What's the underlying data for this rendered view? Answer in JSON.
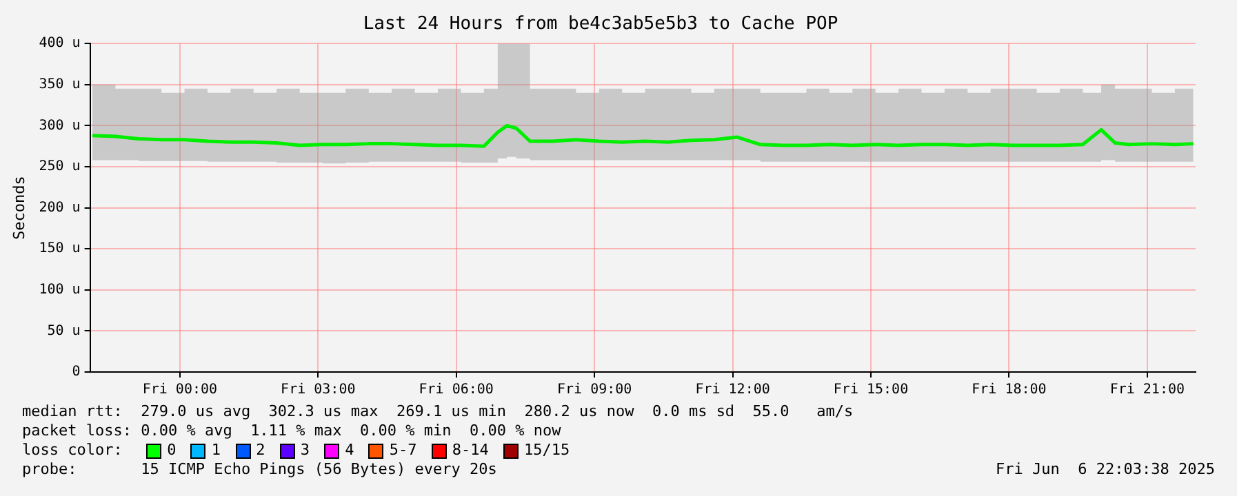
{
  "chart_data": {
    "type": "line",
    "title": "Last 24 Hours from be4c3ab5e5b3 to Cache POP",
    "ylabel": "Seconds",
    "x": [
      "2025-06-05T22:06",
      "2025-06-05T22:36",
      "2025-06-05T23:06",
      "2025-06-05T23:36",
      "2025-06-06T00:06",
      "2025-06-06T00:36",
      "2025-06-06T01:06",
      "2025-06-06T01:36",
      "2025-06-06T02:06",
      "2025-06-06T02:36",
      "2025-06-06T03:06",
      "2025-06-06T03:36",
      "2025-06-06T04:06",
      "2025-06-06T04:36",
      "2025-06-06T05:06",
      "2025-06-06T05:36",
      "2025-06-06T06:06",
      "2025-06-06T06:36",
      "2025-06-06T06:54",
      "2025-06-06T07:06",
      "2025-06-06T07:18",
      "2025-06-06T07:36",
      "2025-06-06T08:06",
      "2025-06-06T08:36",
      "2025-06-06T09:06",
      "2025-06-06T09:36",
      "2025-06-06T10:06",
      "2025-06-06T10:36",
      "2025-06-06T11:06",
      "2025-06-06T11:36",
      "2025-06-06T12:06",
      "2025-06-06T12:36",
      "2025-06-06T13:06",
      "2025-06-06T13:36",
      "2025-06-06T14:06",
      "2025-06-06T14:36",
      "2025-06-06T15:06",
      "2025-06-06T15:36",
      "2025-06-06T16:06",
      "2025-06-06T16:36",
      "2025-06-06T17:06",
      "2025-06-06T17:36",
      "2025-06-06T18:06",
      "2025-06-06T18:36",
      "2025-06-06T19:06",
      "2025-06-06T19:36",
      "2025-06-06T20:00",
      "2025-06-06T20:18",
      "2025-06-06T20:36",
      "2025-06-06T21:06",
      "2025-06-06T21:36",
      "2025-06-06T22:00"
    ],
    "series": [
      {
        "color": "#00ee00",
        "values": [
          288,
          287,
          284,
          283,
          283,
          281,
          280,
          280,
          279,
          276,
          277,
          277,
          278,
          278,
          277,
          276,
          276,
          275,
          292,
          300,
          297,
          281,
          281,
          283,
          281,
          280,
          281,
          280,
          282,
          283,
          286,
          277,
          276,
          276,
          277,
          276,
          277,
          276,
          277,
          277,
          276,
          277,
          276,
          276,
          276,
          277,
          295,
          279,
          277,
          278,
          277,
          278
        ],
        "lower": [
          258,
          258,
          257,
          257,
          257,
          256,
          256,
          256,
          255,
          255,
          254,
          255,
          256,
          256,
          256,
          256,
          255,
          255,
          260,
          262,
          260,
          258,
          258,
          258,
          258,
          258,
          258,
          258,
          258,
          258,
          258,
          256,
          256,
          256,
          256,
          256,
          256,
          256,
          256,
          256,
          256,
          256,
          256,
          256,
          256,
          256,
          258,
          256,
          256,
          256,
          256,
          256
        ],
        "upper": [
          350,
          345,
          345,
          340,
          345,
          340,
          345,
          340,
          345,
          340,
          340,
          345,
          340,
          345,
          340,
          345,
          340,
          345,
          400,
          400,
          400,
          345,
          345,
          340,
          345,
          340,
          345,
          345,
          340,
          345,
          345,
          340,
          340,
          345,
          340,
          345,
          340,
          345,
          340,
          345,
          340,
          345,
          345,
          340,
          345,
          340,
          350,
          345,
          345,
          340,
          345,
          345
        ]
      }
    ],
    "xlim": [
      "2025-06-05T22:03",
      "2025-06-06T22:03"
    ],
    "ylim": [
      0,
      400
    ],
    "xticks": [
      {
        "value": "2025-06-06T00:00",
        "label": "Fri 00:00"
      },
      {
        "value": "2025-06-06T03:00",
        "label": "Fri 03:00"
      },
      {
        "value": "2025-06-06T06:00",
        "label": "Fri 06:00"
      },
      {
        "value": "2025-06-06T09:00",
        "label": "Fri 09:00"
      },
      {
        "value": "2025-06-06T12:00",
        "label": "Fri 12:00"
      },
      {
        "value": "2025-06-06T15:00",
        "label": "Fri 15:00"
      },
      {
        "value": "2025-06-06T18:00",
        "label": "Fri 18:00"
      },
      {
        "value": "2025-06-06T21:00",
        "label": "Fri 21:00"
      }
    ],
    "yticks": [
      0,
      {
        "value": 50,
        "label": "50 u"
      },
      {
        "value": 100,
        "label": "100 u"
      },
      {
        "value": 150,
        "label": "150 u"
      },
      {
        "value": 200,
        "label": "200 u"
      },
      {
        "value": 250,
        "label": "250 u"
      },
      {
        "value": 300,
        "label": "300 u"
      },
      {
        "value": 350,
        "label": "350 u"
      },
      {
        "value": 400,
        "label": "400 u"
      }
    ],
    "grid": true,
    "legend": false,
    "marker": "none",
    "line_style": "solid",
    "annotations": [
      "median rtt:  279.0 us avg  302.3 us max  269.1 us min  280.2 us now  0.0 ms sd  55.0   am/s",
      "packet loss: 0.00 % avg  1.11 % max  0.00 % min  0.00 % now",
      "loss color:  0  1  2  3  4  5-7  8-14  15/15",
      "probe:       15 ICMP Echo Pings (56 Bytes) every 20s",
      "Fri Jun  6 22:03:38 2025"
    ]
  }
}
